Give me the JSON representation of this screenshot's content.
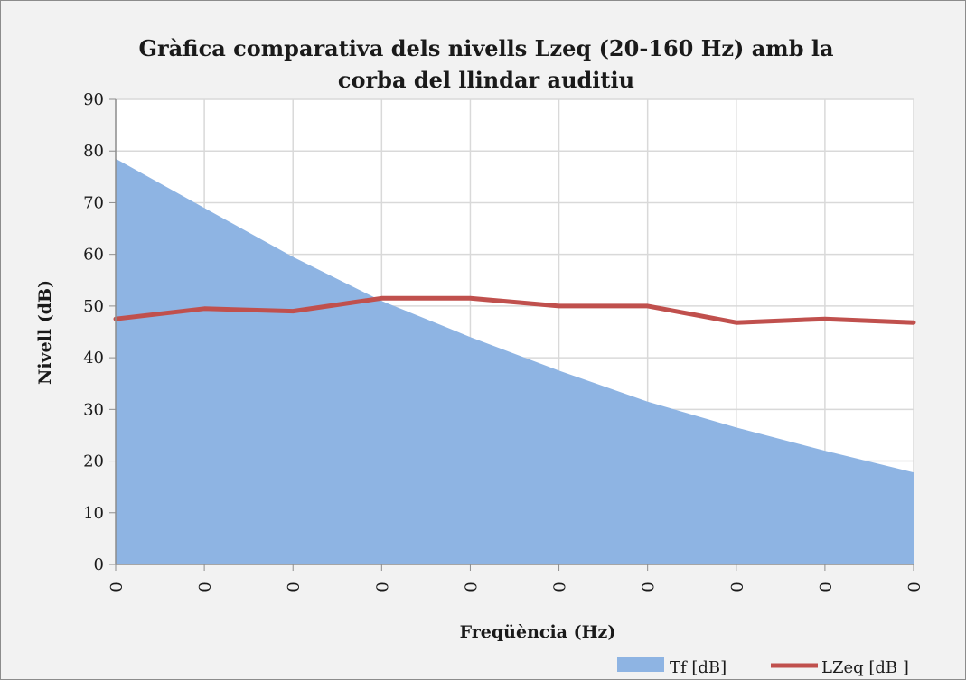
{
  "chart_data": {
    "type": "area",
    "title_lines": [
      "Gràfica comparativa dels nivells Lzeq (20-160 Hz) amb la",
      "corba del llindar auditiu"
    ],
    "xlabel": "Freqüència (Hz)",
    "ylabel": "Nivell (dB)",
    "ylim": [
      0,
      90
    ],
    "yticks": [
      "0",
      "10",
      "20",
      "30",
      "40",
      "50",
      "60",
      "70",
      "80",
      "90"
    ],
    "categories": [
      "0",
      "0",
      "0",
      "0",
      "0",
      "0",
      "0",
      "0",
      "0",
      "0"
    ],
    "grid": true,
    "legend_position": "bottom",
    "series": [
      {
        "name": "Tf [dB]",
        "type": "area",
        "color": "#8eb4e3",
        "values": [
          78.5,
          69.0,
          59.5,
          51.0,
          44.0,
          37.5,
          31.5,
          26.5,
          22.0,
          17.8
        ]
      },
      {
        "name": "LZeq [dB ]",
        "type": "line",
        "color": "#c0504d",
        "values": [
          47.5,
          49.5,
          49.0,
          51.5,
          51.5,
          50.0,
          50.0,
          46.8,
          47.5,
          46.8
        ]
      }
    ]
  }
}
